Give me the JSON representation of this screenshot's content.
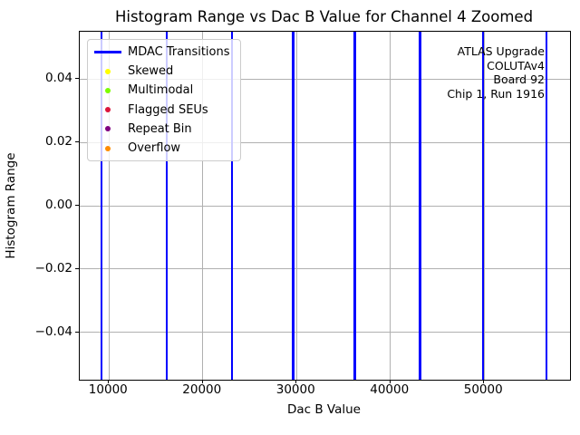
{
  "chart_data": {
    "type": "line",
    "title": "Histogram Range vs Dac B Value for Channel 4 Zoomed",
    "xlabel": "Dac B Value",
    "ylabel": "Histogram Range",
    "xlim": [
      6880,
      59160
    ],
    "ylim": [
      -0.055,
      0.055
    ],
    "x_ticks": [
      10000,
      20000,
      30000,
      40000,
      50000
    ],
    "y_ticks": [
      0.04,
      0.02,
      0.0,
      -0.02,
      -0.04
    ],
    "grid": true,
    "background": "#ffffff",
    "legend": {
      "position": "upper-left",
      "entries": [
        {
          "label": "MDAC Transitions",
          "marker": "line",
          "color": "#0000ff"
        },
        {
          "label": "Skewed",
          "marker": "dot",
          "color": "#ffff00"
        },
        {
          "label": "Multimodal",
          "marker": "dot",
          "color": "#7cfc00"
        },
        {
          "label": "Flagged SEUs",
          "marker": "dot",
          "color": "#dc143c"
        },
        {
          "label": "Repeat Bin",
          "marker": "dot",
          "color": "#800080"
        },
        {
          "label": "Overflow",
          "marker": "dot",
          "color": "#ff8c00"
        }
      ]
    },
    "series": [
      {
        "name": "MDAC Transitions",
        "type": "vlines",
        "color": "#0000ff",
        "x_values": [
          9200,
          16150,
          23100,
          29650,
          36200,
          43150,
          49900,
          56650
        ]
      },
      {
        "name": "Skewed",
        "type": "scatter",
        "color": "#ffff00",
        "points": []
      },
      {
        "name": "Multimodal",
        "type": "scatter",
        "color": "#7cfc00",
        "points": []
      },
      {
        "name": "Flagged SEUs",
        "type": "scatter",
        "color": "#dc143c",
        "points": []
      },
      {
        "name": "Repeat Bin",
        "type": "scatter",
        "color": "#800080",
        "points": []
      },
      {
        "name": "Overflow",
        "type": "scatter",
        "color": "#ff8c00",
        "points": []
      }
    ],
    "annotation": {
      "align": "right",
      "lines": [
        "ATLAS Upgrade",
        "COLUTAv4",
        "Board 92",
        "Chip 1, Run 1916"
      ]
    }
  }
}
